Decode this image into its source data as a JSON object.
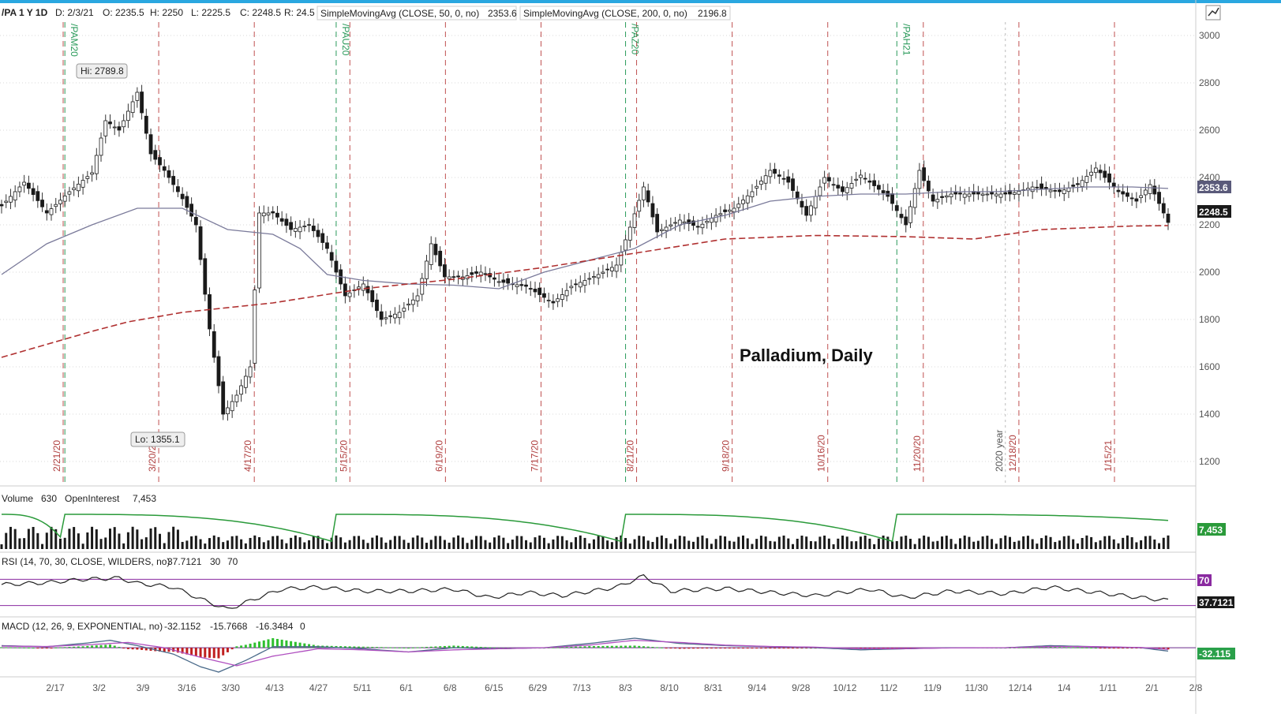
{
  "header": {
    "symbol": "/PA 1 Y 1D",
    "date": "D: 2/3/21",
    "open": "O: 2235.5",
    "high": "H: 2250",
    "low": "L: 2225.5",
    "close": "C: 2248.5",
    "range": "R: 24.5",
    "sma50_label": "SimpleMovingAvg (CLOSE, 50, 0, no)",
    "sma50_value": "2353.6",
    "sma200_label": "SimpleMovingAvg (CLOSE, 200, 0, no)",
    "sma200_value": "2196.8"
  },
  "annotation": "Palladium, Daily",
  "colors": {
    "up": "#1a1a1a",
    "sma50": "#7a7a9a",
    "sma200": "#b03030",
    "volume_oi": "#2a9a3a",
    "rsi": "#222222",
    "rsi_bands": "#8a2aa0",
    "macd": "#4a6a8a",
    "macd_signal": "#b050c0",
    "macd_hist_up": "#2ec02e",
    "macd_hist_dn": "#c02020",
    "accent": "#2aa7e0"
  },
  "chart_data": [
    {
      "type": "candlestick",
      "ylim": [
        1100,
        3050
      ],
      "yticks": [
        "3000",
        "2800",
        "2600",
        "2400",
        "2200",
        "2000",
        "1800",
        "1600",
        "1400",
        "1200"
      ],
      "xticks": [
        "2/17",
        "3/2",
        "3/9",
        "3/16",
        "3/30",
        "4/13",
        "4/27",
        "5/11",
        "6/1",
        "6/8",
        "6/15",
        "6/29",
        "7/13",
        "8/3",
        "8/10",
        "8/31",
        "9/14",
        "9/28",
        "10/12",
        "11/2",
        "11/9",
        "11/30",
        "12/14",
        "1/4",
        "1/11",
        "2/1",
        "2/8"
      ],
      "expiration_labels": [
        "2/21/20",
        "3/20/20",
        "4/17/20",
        "5/15/20",
        "6/19/20",
        "7/17/20",
        "8/21/20",
        "9/18/20",
        "10/16/20",
        "11/20/20",
        "12/18/20",
        "1/15/21"
      ],
      "rollover_labels": [
        "/PAM20",
        "/PAU20",
        "/PAZ20",
        "/PAH21"
      ],
      "year_label": "2020 year",
      "hi_label": "Hi: 2789.8",
      "lo_label": "Lo: 1355.1",
      "price_tag_sma50": "2353.6",
      "price_tag_last": "2248.5",
      "close_path": [
        [
          0,
          2280
        ],
        [
          5,
          2380
        ],
        [
          10,
          2250
        ],
        [
          15,
          2340
        ],
        [
          20,
          2420
        ],
        [
          23,
          2640
        ],
        [
          26,
          2600
        ],
        [
          30,
          2760
        ],
        [
          33,
          2500
        ],
        [
          36,
          2430
        ],
        [
          40,
          2310
        ],
        [
          43,
          2200
        ],
        [
          46,
          1760
        ],
        [
          49,
          1400
        ],
        [
          52,
          1480
        ],
        [
          55,
          1600
        ],
        [
          57,
          2250
        ],
        [
          60,
          2250
        ],
        [
          64,
          2180
        ],
        [
          68,
          2200
        ],
        [
          72,
          2100
        ],
        [
          76,
          1900
        ],
        [
          80,
          1950
        ],
        [
          84,
          1800
        ],
        [
          88,
          1830
        ],
        [
          92,
          1900
        ],
        [
          95,
          2120
        ],
        [
          98,
          1980
        ],
        [
          102,
          1980
        ],
        [
          106,
          2000
        ],
        [
          110,
          1960
        ],
        [
          116,
          1940
        ],
        [
          122,
          1870
        ],
        [
          126,
          1940
        ],
        [
          132,
          1990
        ],
        [
          136,
          2030
        ],
        [
          139,
          2190
        ],
        [
          142,
          2360
        ],
        [
          145,
          2170
        ],
        [
          150,
          2220
        ],
        [
          154,
          2190
        ],
        [
          158,
          2240
        ],
        [
          162,
          2270
        ],
        [
          166,
          2340
        ],
        [
          170,
          2430
        ],
        [
          174,
          2380
        ],
        [
          178,
          2240
        ],
        [
          182,
          2400
        ],
        [
          186,
          2340
        ],
        [
          190,
          2410
        ],
        [
          196,
          2320
        ],
        [
          200,
          2200
        ],
        [
          203,
          2430
        ],
        [
          206,
          2300
        ],
        [
          210,
          2330
        ],
        [
          214,
          2330
        ],
        [
          218,
          2330
        ],
        [
          223,
          2330
        ],
        [
          228,
          2360
        ],
        [
          234,
          2340
        ],
        [
          238,
          2370
        ],
        [
          242,
          2440
        ],
        [
          247,
          2340
        ],
        [
          251,
          2300
        ],
        [
          254,
          2370
        ],
        [
          258,
          2210
        ]
      ],
      "sma50_path": [
        [
          0,
          1990
        ],
        [
          10,
          2120
        ],
        [
          20,
          2200
        ],
        [
          30,
          2270
        ],
        [
          40,
          2270
        ],
        [
          50,
          2180
        ],
        [
          60,
          2160
        ],
        [
          66,
          2100
        ],
        [
          72,
          1990
        ],
        [
          80,
          1965
        ],
        [
          90,
          1950
        ],
        [
          100,
          1945
        ],
        [
          110,
          1930
        ],
        [
          120,
          2000
        ],
        [
          130,
          2050
        ],
        [
          140,
          2100
        ],
        [
          150,
          2200
        ],
        [
          160,
          2240
        ],
        [
          170,
          2300
        ],
        [
          180,
          2320
        ],
        [
          190,
          2330
        ],
        [
          200,
          2330
        ],
        [
          210,
          2340
        ],
        [
          220,
          2340
        ],
        [
          230,
          2350
        ],
        [
          240,
          2360
        ],
        [
          250,
          2360
        ],
        [
          258,
          2353.6
        ]
      ],
      "sma200_path": [
        [
          0,
          1640
        ],
        [
          20,
          1750
        ],
        [
          28,
          1790
        ],
        [
          40,
          1830
        ],
        [
          60,
          1870
        ],
        [
          80,
          1930
        ],
        [
          100,
          1970
        ],
        [
          120,
          2020
        ],
        [
          140,
          2080
        ],
        [
          160,
          2140
        ],
        [
          180,
          2155
        ],
        [
          200,
          2150
        ],
        [
          215,
          2140
        ],
        [
          230,
          2180
        ],
        [
          250,
          2195
        ],
        [
          258,
          2196.8
        ]
      ]
    },
    {
      "type": "bar+line",
      "title": "Volume",
      "volume_value": "630",
      "oi_label": "OpenInterest",
      "oi_value": "7,453",
      "oi_tag": "7,453"
    },
    {
      "type": "line",
      "title": "RSI (14, 70, 30, CLOSE, WILDERS, no)",
      "value": "37.7121",
      "lower": "30",
      "upper": "70",
      "tag_70": "70",
      "tag_last": "37.7121",
      "ylim": [
        15,
        85
      ],
      "path": [
        [
          0,
          62
        ],
        [
          10,
          65
        ],
        [
          18,
          70
        ],
        [
          26,
          72
        ],
        [
          30,
          64
        ],
        [
          38,
          58
        ],
        [
          44,
          40
        ],
        [
          50,
          24
        ],
        [
          56,
          40
        ],
        [
          62,
          55
        ],
        [
          70,
          58
        ],
        [
          80,
          52
        ],
        [
          90,
          52
        ],
        [
          100,
          55
        ],
        [
          108,
          42
        ],
        [
          116,
          50
        ],
        [
          124,
          45
        ],
        [
          136,
          58
        ],
        [
          142,
          75
        ],
        [
          148,
          52
        ],
        [
          160,
          56
        ],
        [
          170,
          50
        ],
        [
          180,
          45
        ],
        [
          192,
          55
        ],
        [
          200,
          42
        ],
        [
          210,
          52
        ],
        [
          222,
          48
        ],
        [
          232,
          58
        ],
        [
          242,
          50
        ],
        [
          252,
          42
        ],
        [
          258,
          37.7
        ]
      ]
    },
    {
      "type": "line+bar",
      "title": "MACD (12, 26, 9, EXPONENTIAL, no)",
      "value": "-32.1152",
      "avg": "-15.7668",
      "diff": "-16.3484",
      "zero": "0",
      "tag_last": "-32.115",
      "ylim": [
        -260,
        120
      ],
      "macd_path": [
        [
          0,
          20
        ],
        [
          10,
          10
        ],
        [
          18,
          40
        ],
        [
          24,
          70
        ],
        [
          30,
          20
        ],
        [
          38,
          -60
        ],
        [
          44,
          -180
        ],
        [
          48,
          -230
        ],
        [
          54,
          -120
        ],
        [
          60,
          10
        ],
        [
          70,
          10
        ],
        [
          80,
          -10
        ],
        [
          90,
          -40
        ],
        [
          100,
          0
        ],
        [
          110,
          -10
        ],
        [
          120,
          0
        ],
        [
          130,
          40
        ],
        [
          140,
          90
        ],
        [
          150,
          40
        ],
        [
          160,
          20
        ],
        [
          170,
          10
        ],
        [
          180,
          0
        ],
        [
          190,
          -20
        ],
        [
          200,
          -10
        ],
        [
          210,
          0
        ],
        [
          222,
          0
        ],
        [
          232,
          20
        ],
        [
          242,
          10
        ],
        [
          252,
          0
        ],
        [
          258,
          -32
        ]
      ],
      "signal_path": [
        [
          0,
          15
        ],
        [
          10,
          12
        ],
        [
          20,
          30
        ],
        [
          28,
          50
        ],
        [
          36,
          0
        ],
        [
          44,
          -90
        ],
        [
          52,
          -170
        ],
        [
          60,
          -80
        ],
        [
          70,
          -10
        ],
        [
          80,
          -20
        ],
        [
          90,
          -40
        ],
        [
          100,
          -20
        ],
        [
          110,
          -10
        ],
        [
          120,
          0
        ],
        [
          130,
          25
        ],
        [
          140,
          70
        ],
        [
          150,
          50
        ],
        [
          160,
          25
        ],
        [
          170,
          12
        ],
        [
          180,
          5
        ],
        [
          190,
          -10
        ],
        [
          200,
          -8
        ],
        [
          210,
          -2
        ],
        [
          222,
          0
        ],
        [
          232,
          12
        ],
        [
          242,
          10
        ],
        [
          252,
          2
        ],
        [
          258,
          -16
        ]
      ]
    }
  ]
}
